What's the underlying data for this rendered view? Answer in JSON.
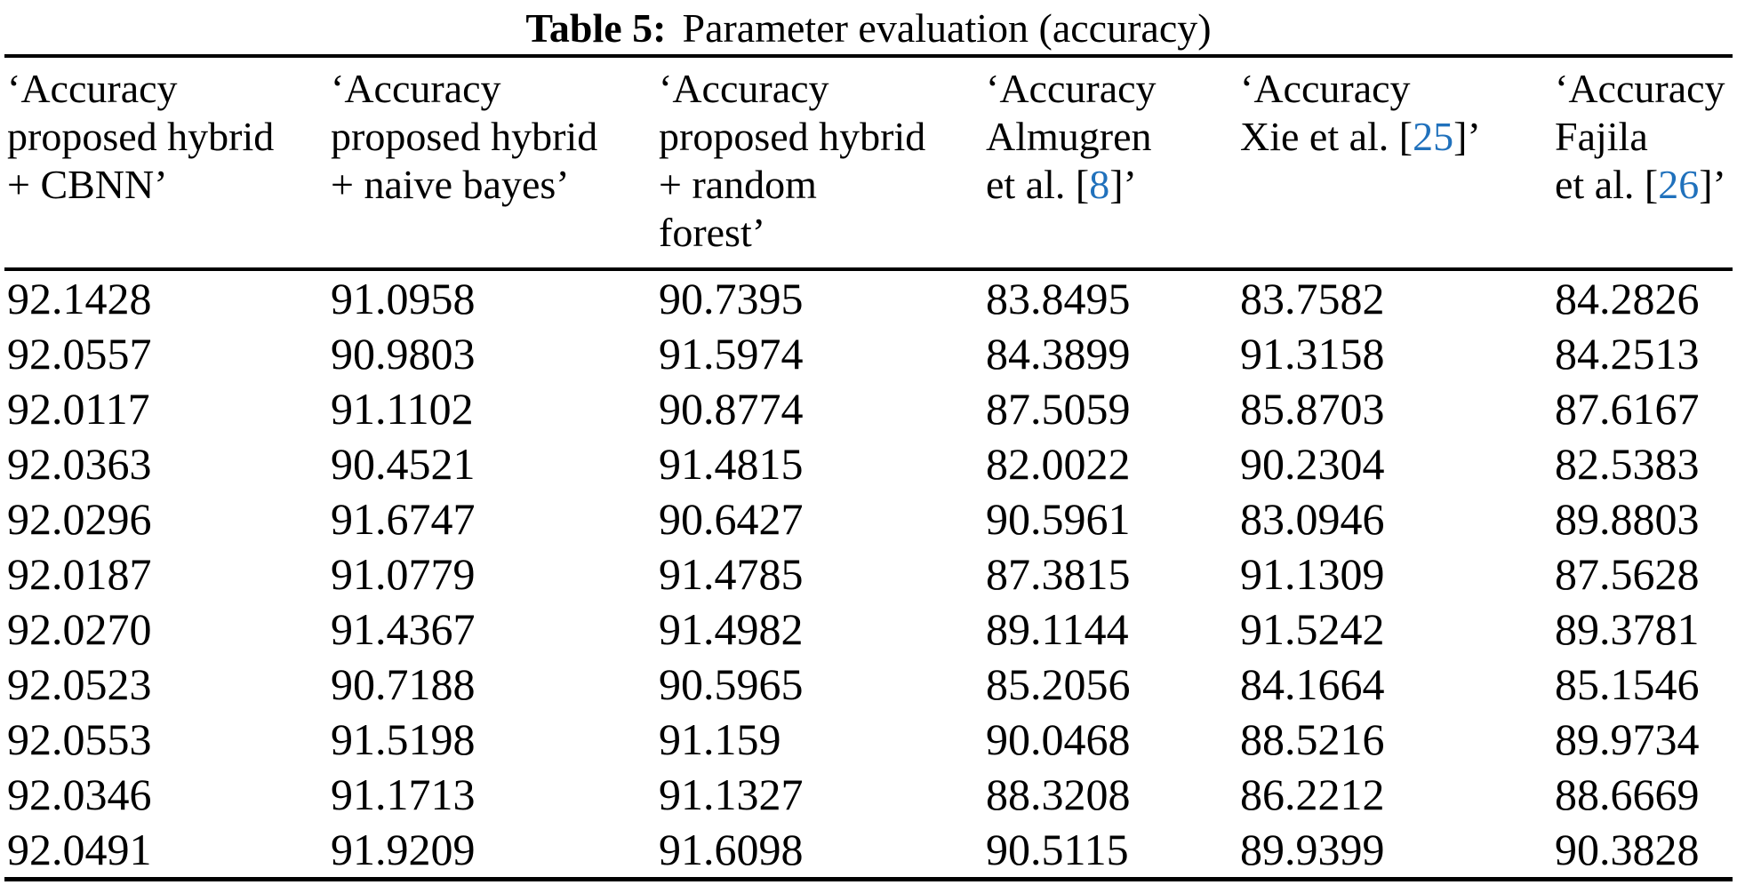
{
  "caption": {
    "label": "Table 5:",
    "text": "Parameter evaluation (accuracy)"
  },
  "colors": {
    "text": "#000000",
    "background": "#ffffff",
    "citation": "#2071bc",
    "rule": "#000000"
  },
  "table": {
    "columns": [
      {
        "lines": [
          "‘Accuracy",
          "proposed hybrid",
          "+ CBNN’"
        ]
      },
      {
        "lines": [
          "‘Accuracy",
          "proposed hybrid",
          "+ naive bayes’"
        ]
      },
      {
        "lines": [
          "‘Accuracy",
          "proposed hybrid",
          "+ random",
          "forest’"
        ]
      },
      {
        "lines": [
          "‘Accuracy",
          "Almugren",
          {
            "pre": "et al. [",
            "cite": "8",
            "post": "]’"
          }
        ]
      },
      {
        "lines": [
          "‘Accuracy",
          {
            "pre": "Xie et al. [",
            "cite": "25",
            "post": "]’"
          }
        ]
      },
      {
        "lines": [
          "‘Accuracy",
          "Fajila",
          {
            "pre": "et al. [",
            "cite": "26",
            "post": "]’"
          }
        ]
      }
    ],
    "rows": [
      [
        "92.1428",
        "91.0958",
        "90.7395",
        "83.8495",
        "83.7582",
        "84.2826"
      ],
      [
        "92.0557",
        "90.9803",
        "91.5974",
        "84.3899",
        "91.3158",
        "84.2513"
      ],
      [
        "92.0117",
        "91.1102",
        "90.8774",
        "87.5059",
        "85.8703",
        "87.6167"
      ],
      [
        "92.0363",
        "90.4521",
        "91.4815",
        "82.0022",
        "90.2304",
        "82.5383"
      ],
      [
        "92.0296",
        "91.6747",
        "90.6427",
        "90.5961",
        "83.0946",
        "89.8803"
      ],
      [
        "92.0187",
        "91.0779",
        "91.4785",
        "87.3815",
        "91.1309",
        "87.5628"
      ],
      [
        "92.0270",
        "91.4367",
        "91.4982",
        "89.1144",
        "91.5242",
        "89.3781"
      ],
      [
        "92.0523",
        "90.7188",
        "90.5965",
        "85.2056",
        "84.1664",
        "85.1546"
      ],
      [
        "92.0553",
        "91.5198",
        "91.159",
        "90.0468",
        "88.5216",
        "89.9734"
      ],
      [
        "92.0346",
        "91.1713",
        "91.1327",
        "88.3208",
        "86.2212",
        "88.6669"
      ],
      [
        "92.0491",
        "91.9209",
        "91.6098",
        "90.5115",
        "89.9399",
        "90.3828"
      ]
    ]
  }
}
